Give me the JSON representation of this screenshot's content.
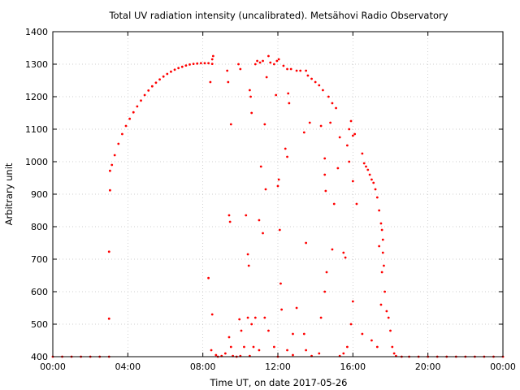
{
  "chart_data": {
    "type": "scatter",
    "title": "Total UV radiation intensity (uncalibrated). Metsähovi Radio Observatory",
    "xlabel": "Time UT, on date 2017-05-26",
    "ylabel": "Arbitrary unit",
    "x_unit": "hours UT",
    "xlim": [
      0,
      24
    ],
    "ylim": [
      400,
      1400
    ],
    "x_ticks": [
      {
        "value": 0,
        "label": "00:00"
      },
      {
        "value": 4,
        "label": "04:00"
      },
      {
        "value": 8,
        "label": "08:00"
      },
      {
        "value": 12,
        "label": "12:00"
      },
      {
        "value": 16,
        "label": "16:00"
      },
      {
        "value": 20,
        "label": "20:00"
      },
      {
        "value": 24,
        "label": "00:00"
      }
    ],
    "y_ticks": [
      {
        "value": 400,
        "label": "400"
      },
      {
        "value": 500,
        "label": "500"
      },
      {
        "value": 600,
        "label": "600"
      },
      {
        "value": 700,
        "label": "700"
      },
      {
        "value": 800,
        "label": "800"
      },
      {
        "value": 900,
        "label": "900"
      },
      {
        "value": 1000,
        "label": "1000"
      },
      {
        "value": 1100,
        "label": "1100"
      },
      {
        "value": 1200,
        "label": "1200"
      },
      {
        "value": 1300,
        "label": "1300"
      },
      {
        "value": 1400,
        "label": "1400"
      }
    ],
    "grid": true,
    "grid_style": "dotted",
    "marker_color": "#ff0000",
    "series": [
      {
        "points": [
          [
            0.0,
            400
          ],
          [
            0.5,
            400
          ],
          [
            1.0,
            400
          ],
          [
            1.5,
            400
          ],
          [
            2.0,
            400
          ],
          [
            2.5,
            400
          ],
          [
            3.0,
            400
          ],
          [
            3.0,
            517
          ],
          [
            3.0,
            723
          ],
          [
            3.05,
            912
          ],
          [
            3.05,
            972
          ],
          [
            3.15,
            990
          ],
          [
            3.3,
            1020
          ],
          [
            3.5,
            1055
          ],
          [
            3.7,
            1085
          ],
          [
            3.9,
            1110
          ],
          [
            4.1,
            1132
          ],
          [
            4.3,
            1152
          ],
          [
            4.5,
            1170
          ],
          [
            4.7,
            1188
          ],
          [
            4.9,
            1205
          ],
          [
            5.1,
            1219
          ],
          [
            5.3,
            1232
          ],
          [
            5.5,
            1243
          ],
          [
            5.7,
            1253
          ],
          [
            5.9,
            1262
          ],
          [
            6.1,
            1270
          ],
          [
            6.3,
            1277
          ],
          [
            6.5,
            1283
          ],
          [
            6.7,
            1288
          ],
          [
            6.9,
            1292
          ],
          [
            7.1,
            1296
          ],
          [
            7.3,
            1299
          ],
          [
            7.5,
            1301
          ],
          [
            7.7,
            1302
          ],
          [
            7.9,
            1303
          ],
          [
            8.1,
            1303
          ],
          [
            8.3,
            1303
          ],
          [
            8.5,
            1301
          ],
          [
            8.3,
            642
          ],
          [
            8.4,
            1245
          ],
          [
            8.5,
            1315
          ],
          [
            8.55,
            1325
          ],
          [
            8.5,
            530
          ],
          [
            8.45,
            420
          ],
          [
            8.7,
            405
          ],
          [
            9.0,
            402
          ],
          [
            9.2,
            410
          ],
          [
            9.3,
            1280
          ],
          [
            9.35,
            1245
          ],
          [
            9.4,
            835
          ],
          [
            9.45,
            815
          ],
          [
            9.5,
            1115
          ],
          [
            9.4,
            460
          ],
          [
            9.6,
            402
          ],
          [
            9.9,
            1300
          ],
          [
            10.0,
            1285
          ],
          [
            9.95,
            515
          ],
          [
            10.05,
            480
          ],
          [
            10.3,
            835
          ],
          [
            10.4,
            715
          ],
          [
            10.45,
            680
          ],
          [
            10.5,
            1220
          ],
          [
            10.55,
            1200
          ],
          [
            10.6,
            1150
          ],
          [
            10.4,
            520
          ],
          [
            10.6,
            500
          ],
          [
            10.7,
            430
          ],
          [
            10.8,
            1300
          ],
          [
            10.9,
            1310
          ],
          [
            11.0,
            820
          ],
          [
            11.1,
            985
          ],
          [
            11.2,
            780
          ],
          [
            11.05,
            1305
          ],
          [
            11.2,
            1310
          ],
          [
            11.3,
            1115
          ],
          [
            11.35,
            915
          ],
          [
            11.4,
            1260
          ],
          [
            11.5,
            1325
          ],
          [
            11.6,
            1305
          ],
          [
            11.8,
            1300
          ],
          [
            11.95,
            1310
          ],
          [
            12.05,
            1315
          ],
          [
            11.9,
            1205
          ],
          [
            12.0,
            925
          ],
          [
            12.05,
            945
          ],
          [
            12.1,
            790
          ],
          [
            12.15,
            625
          ],
          [
            12.3,
            1295
          ],
          [
            12.5,
            1285
          ],
          [
            12.55,
            1210
          ],
          [
            12.6,
            1180
          ],
          [
            12.7,
            1285
          ],
          [
            12.4,
            1040
          ],
          [
            12.5,
            1015
          ],
          [
            12.8,
            405
          ],
          [
            13.0,
            1280
          ],
          [
            13.2,
            1280
          ],
          [
            13.4,
            1090
          ],
          [
            13.5,
            1280
          ],
          [
            13.6,
            1265
          ],
          [
            13.8,
            1255
          ],
          [
            14.0,
            1245
          ],
          [
            13.7,
            1120
          ],
          [
            13.5,
            750
          ],
          [
            13.4,
            470
          ],
          [
            14.2,
            1235
          ],
          [
            14.4,
            1220
          ],
          [
            14.3,
            1110
          ],
          [
            14.5,
            1010
          ],
          [
            14.5,
            960
          ],
          [
            14.55,
            910
          ],
          [
            14.6,
            660
          ],
          [
            14.7,
            1200
          ],
          [
            14.9,
            1180
          ],
          [
            15.1,
            1165
          ],
          [
            14.8,
            1120
          ],
          [
            14.9,
            730
          ],
          [
            15.0,
            870
          ],
          [
            15.2,
            980
          ],
          [
            15.3,
            1075
          ],
          [
            15.5,
            720
          ],
          [
            15.6,
            705
          ],
          [
            15.7,
            1050
          ],
          [
            15.8,
            1100
          ],
          [
            15.9,
            1125
          ],
          [
            16.0,
            1080
          ],
          [
            16.1,
            1085
          ],
          [
            16.0,
            940
          ],
          [
            15.8,
            1000
          ],
          [
            16.2,
            870
          ],
          [
            16.5,
            1025
          ],
          [
            16.6,
            995
          ],
          [
            16.7,
            985
          ],
          [
            16.8,
            975
          ],
          [
            16.9,
            960
          ],
          [
            17.0,
            945
          ],
          [
            17.1,
            935
          ],
          [
            17.2,
            915
          ],
          [
            17.3,
            890
          ],
          [
            17.4,
            850
          ],
          [
            17.5,
            810
          ],
          [
            17.55,
            790
          ],
          [
            17.6,
            760
          ],
          [
            17.6,
            720
          ],
          [
            17.65,
            680
          ],
          [
            17.55,
            660
          ],
          [
            17.7,
            600
          ],
          [
            17.8,
            540
          ],
          [
            17.9,
            520
          ],
          [
            18.0,
            480
          ],
          [
            18.1,
            430
          ],
          [
            18.2,
            410
          ],
          [
            17.4,
            740
          ],
          [
            17.5,
            560
          ],
          [
            17.3,
            430
          ],
          [
            17.0,
            450
          ],
          [
            16.5,
            470
          ],
          [
            16.0,
            570
          ],
          [
            15.9,
            500
          ],
          [
            15.7,
            430
          ],
          [
            15.5,
            410
          ],
          [
            15.3,
            402
          ],
          [
            14.5,
            600
          ],
          [
            14.3,
            520
          ],
          [
            14.2,
            410
          ],
          [
            13.8,
            402
          ],
          [
            13.5,
            420
          ],
          [
            13.0,
            550
          ],
          [
            12.8,
            470
          ],
          [
            12.5,
            420
          ],
          [
            12.2,
            545
          ],
          [
            12.0,
            400
          ],
          [
            11.8,
            430
          ],
          [
            11.5,
            480
          ],
          [
            11.3,
            520
          ],
          [
            11.0,
            420
          ],
          [
            10.8,
            520
          ],
          [
            10.5,
            402
          ],
          [
            10.2,
            430
          ],
          [
            10.0,
            402
          ],
          [
            9.8,
            400
          ],
          [
            9.5,
            430
          ],
          [
            8.8,
            400
          ],
          [
            18.3,
            402
          ],
          [
            18.6,
            400
          ],
          [
            19.0,
            400
          ],
          [
            19.5,
            400
          ],
          [
            20.0,
            400
          ],
          [
            20.5,
            400
          ],
          [
            21.0,
            400
          ],
          [
            21.5,
            400
          ],
          [
            22.0,
            400
          ],
          [
            22.5,
            400
          ],
          [
            23.0,
            400
          ],
          [
            23.5,
            400
          ],
          [
            24.0,
            400
          ]
        ]
      }
    ]
  }
}
